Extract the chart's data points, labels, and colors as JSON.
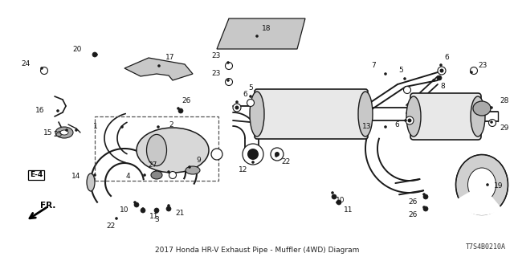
{
  "bg_color": "#ffffff",
  "diagram_code": "T7S4B0210A",
  "fig_width": 6.4,
  "fig_height": 3.2,
  "dpi": 100,
  "line_color": "#1a1a1a",
  "gray_fill": "#c8c8c8",
  "light_gray": "#e8e8e8"
}
